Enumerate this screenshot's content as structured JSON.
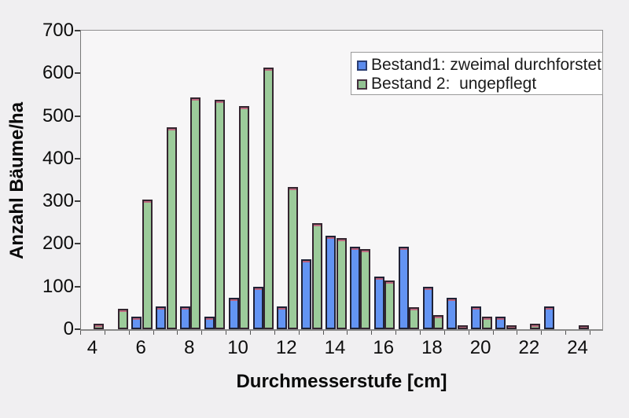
{
  "chart_data": {
    "type": "bar",
    "title": "",
    "xlabel": "Durchmesserstufe [cm]",
    "ylabel": "Anzahl Bäume/ha",
    "categories": [
      4,
      5,
      6,
      7,
      8,
      9,
      10,
      11,
      12,
      13,
      14,
      15,
      16,
      17,
      18,
      19,
      20,
      21,
      22,
      23,
      24
    ],
    "series": [
      {
        "name": "Bestand1: zweimal durchforstet",
        "color": "#6394f3",
        "values": [
          0,
          0,
          25,
          50,
          50,
          25,
          70,
          95,
          50,
          160,
          215,
          190,
          120,
          190,
          95,
          70,
          50,
          25,
          0,
          50,
          0
        ]
      },
      {
        "name": "Bestand 2:  ungepflegt",
        "color": "#9ccb9a",
        "values": [
          10,
          45,
          300,
          470,
          540,
          535,
          520,
          610,
          330,
          245,
          210,
          185,
          110,
          48,
          30,
          5,
          25,
          5,
          10,
          0,
          5
        ]
      }
    ],
    "ylim": [
      0,
      700
    ],
    "yticks": [
      0,
      100,
      200,
      300,
      400,
      500,
      600,
      700
    ],
    "xticks": [
      4,
      6,
      8,
      10,
      12,
      14,
      16,
      18,
      20,
      22,
      24
    ],
    "legend_position": "top-right-inside",
    "grid": false
  }
}
